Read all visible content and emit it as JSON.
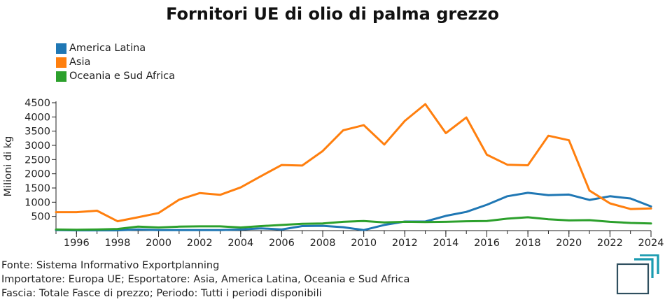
{
  "chart_data": {
    "type": "line",
    "title": "Fornitori UE di olio di palma grezzo",
    "xlabel": "",
    "ylabel": "Milioni di kg",
    "xlim": [
      1995,
      2024
    ],
    "ylim": [
      0,
      4500
    ],
    "y_ticks": [
      500,
      1000,
      1500,
      2000,
      2500,
      3000,
      3500,
      4000,
      4500
    ],
    "x_ticks": [
      1996,
      1998,
      2000,
      2002,
      2004,
      2006,
      2008,
      2010,
      2012,
      2014,
      2016,
      2018,
      2020,
      2022,
      2024
    ],
    "x": [
      1995,
      1996,
      1997,
      1998,
      1999,
      2000,
      2001,
      2002,
      2003,
      2004,
      2005,
      2006,
      2007,
      2008,
      2009,
      2010,
      2011,
      2012,
      2013,
      2014,
      2015,
      2016,
      2017,
      2018,
      2019,
      2020,
      2021,
      2022,
      2023,
      2024
    ],
    "legend_position": "top-left",
    "series": [
      {
        "name": "America Latina",
        "color": "#1f77b4",
        "values": [
          20,
          10,
          10,
          10,
          40,
          20,
          20,
          20,
          20,
          40,
          80,
          40,
          160,
          170,
          120,
          20,
          200,
          320,
          320,
          520,
          660,
          910,
          1210,
          1330,
          1250,
          1270,
          1080,
          1210,
          1130,
          850
        ]
      },
      {
        "name": "Asia",
        "color": "#ff7f0e",
        "values": [
          650,
          650,
          700,
          330,
          470,
          620,
          1090,
          1320,
          1260,
          1520,
          1920,
          2310,
          2290,
          2800,
          3530,
          3710,
          3030,
          3860,
          4450,
          3430,
          3980,
          2670,
          2320,
          2300,
          3340,
          3180,
          1410,
          960,
          760,
          780
        ]
      },
      {
        "name": "Oceania e Sud Africa",
        "color": "#2ca02c",
        "values": [
          40,
          30,
          40,
          60,
          140,
          110,
          140,
          150,
          150,
          110,
          160,
          200,
          240,
          250,
          310,
          340,
          290,
          310,
          300,
          310,
          330,
          340,
          420,
          470,
          400,
          360,
          370,
          310,
          270,
          250
        ]
      }
    ]
  },
  "footer": {
    "line1": "Fonte: Sistema Informativo Exportplanning",
    "line2": "Importatore: Europa UE; Esportatore: Asia, America Latina, Oceania e Sud Africa",
    "line3": "Fascia: Totale Fasce di prezzo; Periodo: Tutti i periodi disponibili"
  },
  "colors": {
    "axis": "#222222",
    "logo_dark": "#2f4f5f",
    "logo_accent": "#1a9bb0"
  }
}
